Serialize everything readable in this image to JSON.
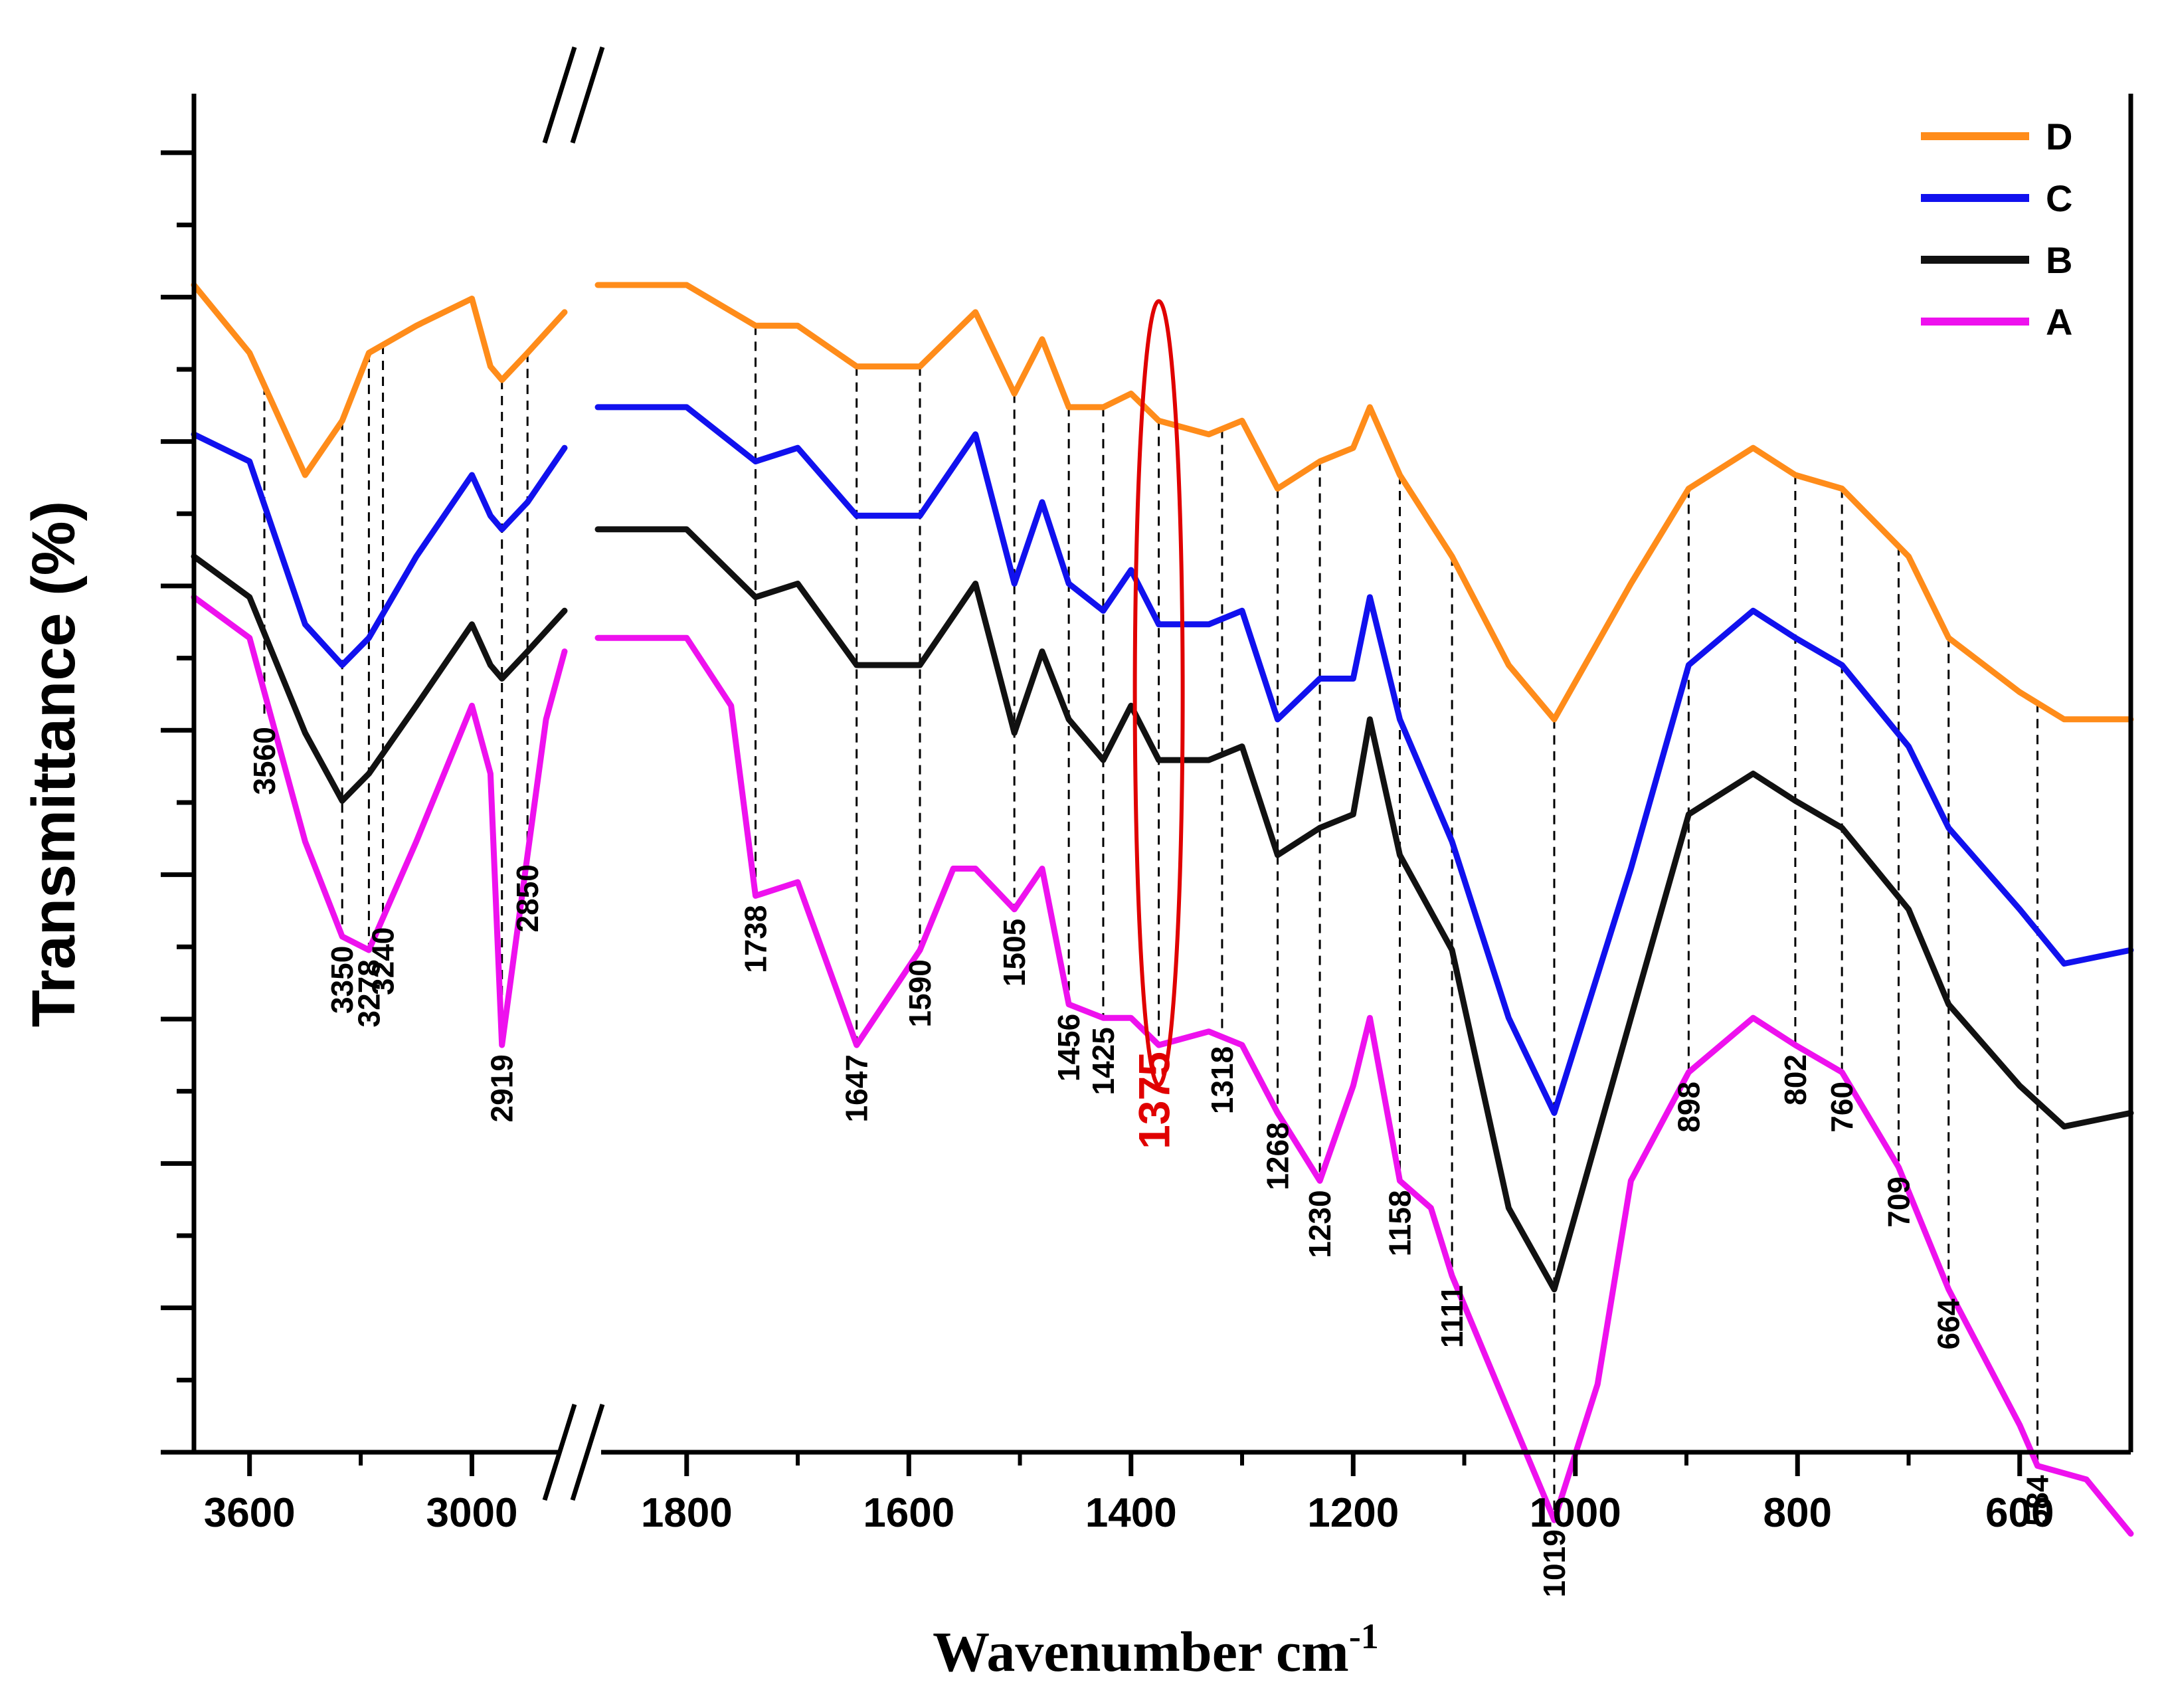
{
  "chart_data": {
    "type": "line",
    "title": "",
    "xlabel": "Wavenumber cm",
    "xlabel_superscript": "-1",
    "ylabel": "Transmittance (%)",
    "x_reversed": true,
    "axis_break": "between 2700 and 1900",
    "x_ticks": [
      3600,
      3000,
      1800,
      1600,
      1400,
      1200,
      1000,
      800,
      600
    ],
    "x_tick_labels": [
      "3600",
      "3000",
      "1800",
      "1600",
      "1400",
      "1200",
      "1000",
      "800",
      "600"
    ],
    "y_tick_labels": "none",
    "ylim": [
      0,
      100
    ],
    "legend_position": "top-right",
    "series": [
      {
        "name": "D",
        "color": "#FF8C1A",
        "x": [
          3750,
          3600,
          3450,
          3350,
          3278,
          3150,
          3000,
          2950,
          2919,
          2850,
          2750,
          1880,
          1800,
          1738,
          1700,
          1647,
          1590,
          1540,
          1505,
          1480,
          1456,
          1425,
          1400,
          1375,
          1330,
          1300,
          1268,
          1230,
          1200,
          1185,
          1158,
          1111,
          1060,
          1019,
          950,
          898,
          840,
          802,
          760,
          700,
          664,
          600,
          560,
          500
        ],
        "y": [
          86,
          81,
          72,
          76,
          81,
          83,
          85,
          80,
          79,
          81,
          84,
          86,
          86,
          83,
          83,
          80,
          80,
          84,
          78,
          82,
          77,
          77,
          78,
          76,
          75,
          76,
          71,
          73,
          74,
          77,
          72,
          66,
          58,
          54,
          64,
          71,
          74,
          72,
          71,
          66,
          60,
          56,
          54,
          54
        ]
      },
      {
        "name": "C",
        "color": "#1111EE",
        "x": [
          3750,
          3600,
          3450,
          3350,
          3278,
          3150,
          3000,
          2950,
          2919,
          2850,
          2750,
          1880,
          1800,
          1738,
          1700,
          1647,
          1590,
          1540,
          1505,
          1480,
          1456,
          1425,
          1400,
          1375,
          1330,
          1300,
          1268,
          1230,
          1200,
          1185,
          1158,
          1111,
          1060,
          1019,
          950,
          898,
          840,
          802,
          760,
          700,
          664,
          600,
          560,
          500
        ],
        "y": [
          75,
          73,
          61,
          58,
          60,
          66,
          72,
          69,
          68,
          70,
          74,
          77,
          77,
          73,
          74,
          69,
          69,
          75,
          64,
          70,
          64,
          62,
          65,
          61,
          61,
          62,
          54,
          57,
          57,
          63,
          54,
          45,
          32,
          25,
          43,
          58,
          62,
          60,
          58,
          52,
          46,
          40,
          36,
          37
        ]
      },
      {
        "name": "B",
        "color": "#111111",
        "x": [
          3750,
          3600,
          3450,
          3350,
          3278,
          3150,
          3000,
          2950,
          2919,
          2850,
          2750,
          1880,
          1800,
          1738,
          1700,
          1647,
          1590,
          1540,
          1505,
          1480,
          1456,
          1425,
          1400,
          1375,
          1330,
          1300,
          1268,
          1230,
          1200,
          1185,
          1158,
          1111,
          1060,
          1019,
          950,
          898,
          840,
          802,
          760,
          700,
          664,
          600,
          560,
          500
        ],
        "y": [
          66,
          63,
          53,
          48,
          50,
          55,
          61,
          58,
          57,
          59,
          62,
          68,
          68,
          63,
          64,
          58,
          58,
          64,
          53,
          59,
          54,
          51,
          55,
          51,
          51,
          52,
          44,
          46,
          47,
          54,
          44,
          37,
          18,
          12,
          32,
          47,
          50,
          48,
          46,
          40,
          33,
          27,
          24,
          25
        ]
      },
      {
        "name": "A",
        "color": "#EE11EE",
        "x": [
          3750,
          3600,
          3450,
          3350,
          3278,
          3150,
          3000,
          2950,
          2919,
          2850,
          2800,
          2750,
          1880,
          1800,
          1760,
          1738,
          1700,
          1647,
          1590,
          1560,
          1540,
          1505,
          1480,
          1456,
          1425,
          1400,
          1375,
          1330,
          1300,
          1268,
          1230,
          1200,
          1185,
          1158,
          1130,
          1111,
          1060,
          1019,
          980,
          950,
          898,
          840,
          802,
          760,
          709,
          664,
          600,
          584,
          540,
          500
        ],
        "y": [
          63,
          60,
          45,
          38,
          37,
          45,
          55,
          50,
          30,
          44,
          54,
          59,
          60,
          60,
          55,
          41,
          42,
          30,
          37,
          43,
          43,
          40,
          43,
          33,
          32,
          32,
          30,
          31,
          30,
          25,
          20,
          27,
          32,
          20,
          18,
          13,
          3,
          -5,
          5,
          20,
          28,
          32,
          30,
          28,
          21,
          12,
          2,
          -1,
          -2,
          -6
        ]
      }
    ],
    "annotations": [
      {
        "label": "3560",
        "x": 3560
      },
      {
        "label": "3350",
        "x": 3350
      },
      {
        "label": "3278",
        "x": 3278
      },
      {
        "label": "3240",
        "x": 3240
      },
      {
        "label": "2919",
        "x": 2919
      },
      {
        "label": "2850",
        "x": 2850
      },
      {
        "label": "1738",
        "x": 1738
      },
      {
        "label": "1647",
        "x": 1647
      },
      {
        "label": "1590",
        "x": 1590
      },
      {
        "label": "1505",
        "x": 1505
      },
      {
        "label": "1456",
        "x": 1456
      },
      {
        "label": "1425",
        "x": 1425
      },
      {
        "label": "1375",
        "x": 1375,
        "highlight": true,
        "color": "#E00000"
      },
      {
        "label": "1318",
        "x": 1318
      },
      {
        "label": "1268",
        "x": 1268
      },
      {
        "label": "1230",
        "x": 1230
      },
      {
        "label": "1158",
        "x": 1158
      },
      {
        "label": "1111",
        "x": 1111
      },
      {
        "label": "1019",
        "x": 1019
      },
      {
        "label": "898",
        "x": 898
      },
      {
        "label": "802",
        "x": 802
      },
      {
        "label": "760",
        "x": 760
      },
      {
        "label": "709",
        "x": 709
      },
      {
        "label": "664",
        "x": 664
      },
      {
        "label": "584",
        "x": 584
      }
    ]
  }
}
